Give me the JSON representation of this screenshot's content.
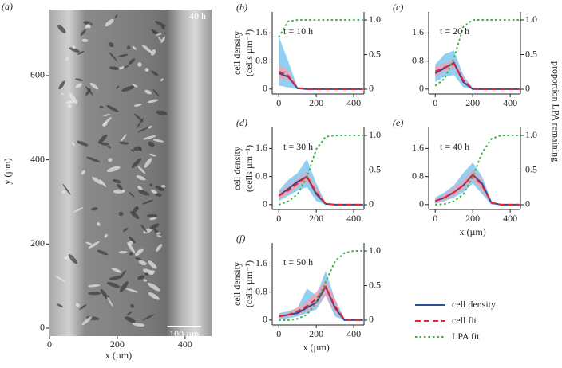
{
  "chart_data": [
    {
      "type": "image",
      "label": "(a)",
      "annotation": "40 h",
      "scale_label": "100 µm",
      "scale_length": 100,
      "xlabel": "x (µm)",
      "ylabel": "y (µm)",
      "xlim": [
        0,
        478
      ],
      "xticks": [
        0,
        200,
        400
      ],
      "ylim": [
        -19,
        757
      ],
      "yticks": [
        0,
        200,
        400,
        600
      ]
    },
    {
      "type": "line",
      "label": "(b)",
      "annotation": "t = 10 h",
      "ylabel": [
        "cell density",
        "(cells µm⁻¹)"
      ],
      "x": [
        0,
        50,
        100,
        150,
        200,
        250,
        300,
        350,
        400,
        450
      ],
      "xlim": [
        -35,
        455
      ],
      "xticks": [
        0,
        200,
        400
      ],
      "ylim": [
        -0.14,
        2.2
      ],
      "yticks": [
        0,
        0.8,
        1.6
      ],
      "y2lim": [
        -0.069,
        1.115
      ],
      "y2ticks": [
        0,
        0.5,
        {
          "value": 1,
          "label": "1.0"
        }
      ],
      "bands": [
        {
          "color": "#7ec8f0",
          "lower": [
            0.1,
            0.05,
            0,
            0,
            0,
            0,
            0,
            0,
            0,
            0
          ],
          "upper": [
            1.5,
            0.8,
            0.05,
            0,
            0,
            0,
            0,
            0,
            0,
            0
          ]
        },
        {
          "color": "#f2a0b4",
          "lower": [
            0.3,
            0.25,
            0,
            0,
            0,
            0,
            0,
            0,
            0,
            0
          ],
          "upper": [
            0.7,
            0.55,
            0.05,
            0,
            0,
            0,
            0,
            0,
            0,
            0
          ]
        }
      ],
      "series": [
        {
          "color": "#2b4c9b",
          "values": [
            0.45,
            0.35,
            0.02,
            0,
            0,
            0,
            0,
            0,
            0,
            0
          ]
        },
        {
          "color": "#e8262a",
          "dash": "dashed",
          "values": [
            0.5,
            0.38,
            0.03,
            0,
            0,
            0,
            0,
            0,
            0,
            0
          ]
        },
        {
          "color": "#3bb14a",
          "dash": "dotted",
          "axis": "y2",
          "values": [
            0.75,
            0.98,
            1,
            1,
            1,
            1,
            1,
            1,
            1,
            1
          ]
        }
      ]
    },
    {
      "type": "line",
      "label": "(c)",
      "annotation": "t = 20 h",
      "x": [
        0,
        50,
        100,
        150,
        200,
        250,
        300,
        350,
        400,
        450
      ],
      "xlim": [
        -35,
        455
      ],
      "xticks": [
        0,
        200,
        400
      ],
      "ylim": [
        -0.14,
        2.2
      ],
      "yticks": [
        0,
        0.8,
        1.6
      ],
      "y2lim": [
        -0.069,
        1.115
      ],
      "y2ticks": [
        0,
        0.5,
        {
          "value": 1,
          "label": "1.0"
        }
      ],
      "bands": [
        {
          "color": "#7ec8f0",
          "lower": [
            0.2,
            0.35,
            0.4,
            0.05,
            0,
            0,
            0,
            0,
            0,
            0
          ],
          "upper": [
            0.7,
            1.0,
            1.1,
            0.4,
            0.02,
            0,
            0,
            0,
            0,
            0
          ]
        },
        {
          "color": "#f2a0b4",
          "lower": [
            0.35,
            0.5,
            0.6,
            0.15,
            0,
            0,
            0,
            0,
            0,
            0
          ],
          "upper": [
            0.65,
            0.75,
            0.85,
            0.35,
            0.02,
            0,
            0,
            0,
            0,
            0
          ]
        }
      ],
      "series": [
        {
          "color": "#2b4c9b",
          "values": [
            0.45,
            0.6,
            0.75,
            0.2,
            0,
            0,
            0,
            0,
            0,
            0
          ]
        },
        {
          "color": "#e8262a",
          "dash": "dashed",
          "values": [
            0.5,
            0.62,
            0.72,
            0.25,
            0.01,
            0,
            0,
            0,
            0,
            0
          ]
        },
        {
          "color": "#3bb14a",
          "dash": "dotted",
          "axis": "y2",
          "values": [
            0.05,
            0.15,
            0.45,
            0.9,
            1,
            1,
            1,
            1,
            1,
            1
          ]
        }
      ]
    },
    {
      "type": "line",
      "label": "(d)",
      "annotation": "t = 30 h",
      "ylabel": [
        "cell density",
        "(cells µm⁻¹)"
      ],
      "x": [
        0,
        50,
        100,
        150,
        200,
        250,
        300,
        350,
        400,
        450
      ],
      "xlim": [
        -35,
        455
      ],
      "xticks": [
        0,
        200,
        400
      ],
      "ylim": [
        -0.14,
        2.2
      ],
      "yticks": [
        0,
        0.8,
        1.6
      ],
      "y2lim": [
        -0.069,
        1.115
      ],
      "y2ticks": [
        0,
        0.5,
        {
          "value": 1,
          "label": "1.0"
        }
      ],
      "bands": [
        {
          "color": "#7ec8f0",
          "lower": [
            0.1,
            0.25,
            0.4,
            0.5,
            0.1,
            0,
            0,
            0,
            0,
            0
          ],
          "upper": [
            0.4,
            0.7,
            0.9,
            1.3,
            0.6,
            0.05,
            0,
            0,
            0,
            0
          ]
        },
        {
          "color": "#f2a0b4",
          "lower": [
            0.15,
            0.3,
            0.5,
            0.65,
            0.25,
            0,
            0,
            0,
            0,
            0
          ],
          "upper": [
            0.35,
            0.55,
            0.75,
            0.95,
            0.5,
            0.05,
            0,
            0,
            0,
            0
          ]
        }
      ],
      "series": [
        {
          "color": "#2b4c9b",
          "values": [
            0.25,
            0.45,
            0.65,
            0.8,
            0.3,
            0.02,
            0,
            0,
            0,
            0
          ]
        },
        {
          "color": "#e8262a",
          "dash": "dashed",
          "values": [
            0.25,
            0.4,
            0.6,
            0.8,
            0.35,
            0.03,
            0,
            0,
            0,
            0
          ]
        },
        {
          "color": "#3bb14a",
          "dash": "dotted",
          "axis": "y2",
          "values": [
            0,
            0.05,
            0.15,
            0.4,
            0.8,
            0.98,
            1,
            1,
            1,
            1
          ]
        }
      ]
    },
    {
      "type": "line",
      "label": "(e)",
      "annotation": "t = 40 h",
      "xlabel": "x (µm)",
      "y2label": "proportion LPA remaining",
      "x": [
        0,
        50,
        100,
        150,
        200,
        250,
        300,
        350,
        400,
        450
      ],
      "xlim": [
        -35,
        455
      ],
      "xticks": [
        0,
        200,
        400
      ],
      "ylim": [
        -0.14,
        2.2
      ],
      "yticks": [
        0,
        0.8,
        1.6
      ],
      "y2lim": [
        -0.069,
        1.115
      ],
      "y2ticks": [
        0,
        0.5,
        {
          "value": 1,
          "label": "1.0"
        }
      ],
      "bands": [
        {
          "color": "#7ec8f0",
          "lower": [
            0.02,
            0.1,
            0.2,
            0.35,
            0.6,
            0.3,
            0,
            0,
            0,
            0
          ],
          "upper": [
            0.2,
            0.35,
            0.55,
            0.9,
            1.2,
            0.8,
            0.1,
            0,
            0,
            0
          ]
        },
        {
          "color": "#f2a0b4",
          "lower": [
            0.05,
            0.12,
            0.25,
            0.45,
            0.7,
            0.4,
            0.02,
            0,
            0,
            0
          ],
          "upper": [
            0.15,
            0.3,
            0.5,
            0.7,
            1.0,
            0.7,
            0.1,
            0,
            0,
            0
          ]
        }
      ],
      "series": [
        {
          "color": "#2b4c9b",
          "values": [
            0.1,
            0.2,
            0.35,
            0.55,
            0.85,
            0.6,
            0.05,
            0,
            0,
            0
          ]
        },
        {
          "color": "#e8262a",
          "dash": "dashed",
          "values": [
            0.1,
            0.2,
            0.35,
            0.55,
            0.85,
            0.55,
            0.05,
            0,
            0,
            0
          ]
        },
        {
          "color": "#3bb14a",
          "dash": "dotted",
          "axis": "y2",
          "values": [
            0,
            0.01,
            0.05,
            0.15,
            0.4,
            0.75,
            0.95,
            1,
            1,
            1
          ]
        }
      ]
    },
    {
      "type": "line",
      "label": "(f)",
      "annotation": "t = 50 h",
      "ylabel": [
        "cell density",
        "(cells µm⁻¹)"
      ],
      "xlabel": "x (µm)",
      "x": [
        0,
        50,
        100,
        150,
        200,
        250,
        300,
        350,
        400,
        450
      ],
      "xlim": [
        -35,
        455
      ],
      "xticks": [
        0,
        200,
        400
      ],
      "ylim": [
        -0.14,
        2.2
      ],
      "yticks": [
        0,
        0.8,
        1.6
      ],
      "y2lim": [
        -0.069,
        1.115
      ],
      "y2ticks": [
        0,
        0.5,
        {
          "value": 1,
          "label": "1.0"
        }
      ],
      "bands": [
        {
          "color": "#7ec8f0",
          "lower": [
            0.02,
            0.05,
            0.1,
            0.2,
            0.3,
            0.7,
            0.1,
            0,
            0,
            0
          ],
          "upper": [
            0.2,
            0.25,
            0.35,
            0.9,
            0.7,
            1.4,
            0.6,
            0.05,
            0,
            0
          ]
        },
        {
          "color": "#f2a0b4",
          "lower": [
            0.05,
            0.1,
            0.15,
            0.25,
            0.4,
            0.7,
            0.2,
            0,
            0,
            0
          ],
          "upper": [
            0.15,
            0.2,
            0.35,
            0.55,
            0.8,
            1.15,
            0.6,
            0.05,
            0,
            0
          ]
        }
      ],
      "series": [
        {
          "name": "cell density",
          "color": "#2b4c9b",
          "values": [
            0.1,
            0.15,
            0.2,
            0.35,
            0.5,
            0.95,
            0.35,
            0,
            0,
            0
          ]
        },
        {
          "name": "cell fit",
          "color": "#e8262a",
          "dash": "dashed",
          "values": [
            0.1,
            0.15,
            0.25,
            0.4,
            0.6,
            0.95,
            0.4,
            0.02,
            0,
            0
          ]
        },
        {
          "name": "LPA fit",
          "color": "#3bb14a",
          "dash": "dotted",
          "axis": "y2",
          "values": [
            0,
            0,
            0.02,
            0.08,
            0.25,
            0.55,
            0.85,
            0.97,
            1,
            1
          ]
        }
      ]
    }
  ]
}
